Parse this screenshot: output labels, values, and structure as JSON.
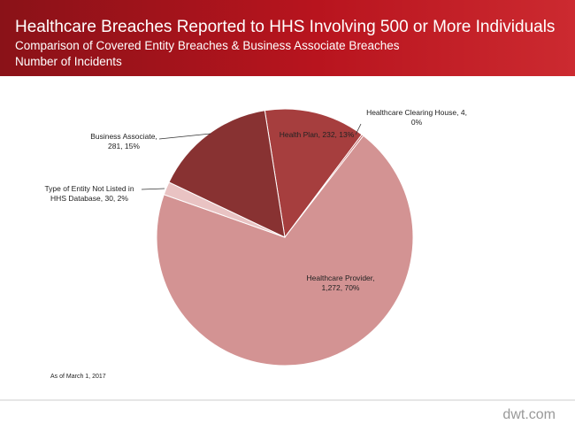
{
  "header": {
    "title": "Healthcare Breaches Reported to HHS Involving 500 or More Individuals",
    "subtitle": "Comparison  of Covered Entity Breaches & Business Associate Breaches",
    "subtitle2": "Number  of Incidents"
  },
  "chart_data": {
    "type": "pie",
    "values": [
      232,
      4,
      1272,
      30,
      281
    ],
    "value_labels": [
      "Health Plan, 232, 13%",
      "Healthcare Clearing House, 4, 0%",
      "Healthcare Provider, 1,272, 70%",
      "Type of Entity Not Listed in HHS Database, 30, 2%",
      "Business Associate, 281, 15%"
    ],
    "colors": [
      "#a63e3e",
      "#c05050",
      "#d39393",
      "#e9c3c3",
      "#883232"
    ]
  },
  "footnote": "As of March 1, 2017",
  "brand": "dwt.com"
}
